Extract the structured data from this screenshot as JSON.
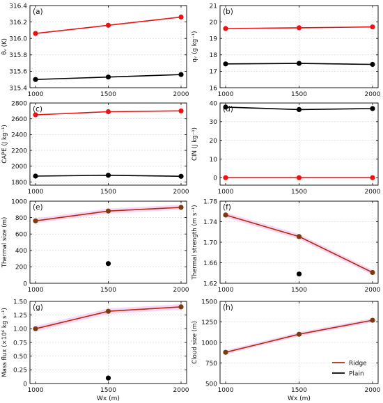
{
  "figure": {
    "x_axis_label": "Wx (m)",
    "legend": [
      {
        "label": "Ridge",
        "color": "#b02a0f"
      },
      {
        "label": "Plain",
        "color": "#000000"
      }
    ]
  },
  "colors": {
    "red": "#ee1111",
    "black": "#000000",
    "ridge_line": "#b02a0f",
    "ridge_marker": "#7a3b12",
    "shading": "#f7c4f0"
  },
  "chart_data": [
    {
      "type": "line",
      "panel_label": "(a)",
      "ylabel": "θᵥ (K)",
      "x": [
        1000,
        1500,
        2000
      ],
      "xlim": [
        1000,
        2000
      ],
      "ylim": [
        315.4,
        316.4
      ],
      "yticks": [
        315.4,
        315.6,
        315.8,
        316.0,
        316.2,
        316.4
      ],
      "ytick_decimals": 1,
      "grid": true,
      "series": [
        {
          "values": [
            316.06,
            316.16,
            316.26
          ],
          "color": "red"
        },
        {
          "values": [
            315.5,
            315.53,
            315.56
          ],
          "color": "black"
        }
      ]
    },
    {
      "type": "line",
      "panel_label": "(b)",
      "ylabel": "qᵥ (g kg⁻¹)",
      "x": [
        1000,
        1500,
        2000
      ],
      "xlim": [
        1000,
        2000
      ],
      "ylim": [
        16,
        21
      ],
      "yticks": [
        16,
        17,
        18,
        19,
        20,
        21
      ],
      "ytick_decimals": 0,
      "grid": true,
      "series": [
        {
          "values": [
            19.6,
            19.65,
            19.7
          ],
          "color": "red"
        },
        {
          "values": [
            17.45,
            17.48,
            17.42
          ],
          "color": "black"
        }
      ]
    },
    {
      "type": "line",
      "panel_label": "(c)",
      "ylabel": "CAPE (J kg⁻¹)",
      "x": [
        1000,
        1500,
        2000
      ],
      "xlim": [
        1000,
        2000
      ],
      "ylim": [
        1760,
        2800
      ],
      "yticks": [
        1800,
        2000,
        2200,
        2400,
        2600,
        2800
      ],
      "ytick_decimals": 0,
      "grid": true,
      "series": [
        {
          "values": [
            2650,
            2690,
            2700
          ],
          "color": "red"
        },
        {
          "values": [
            1875,
            1885,
            1872
          ],
          "color": "black"
        }
      ]
    },
    {
      "type": "line",
      "panel_label": "(d)",
      "ylabel": "CIN (J kg⁻¹)",
      "x": [
        1000,
        1500,
        2000
      ],
      "xlim": [
        1000,
        2000
      ],
      "ylim": [
        -4,
        40
      ],
      "yticks": [
        0,
        10,
        20,
        30,
        40
      ],
      "ytick_decimals": 0,
      "grid": true,
      "series": [
        {
          "values": [
            37.8,
            36.5,
            37.0
          ],
          "color": "black"
        },
        {
          "values": [
            0,
            0,
            0
          ],
          "color": "red"
        }
      ]
    },
    {
      "type": "line",
      "panel_label": "(e)",
      "ylabel": "Thermal size (m)",
      "x": [
        1000,
        1500,
        2000
      ],
      "xlim": [
        1000,
        2000
      ],
      "ylim": [
        0,
        1000
      ],
      "yticks": [
        0,
        200,
        400,
        600,
        800,
        1000
      ],
      "ytick_decimals": 0,
      "grid": true,
      "series": [
        {
          "values": [
            760,
            880,
            925
          ],
          "color": "ridge",
          "shade": 30
        },
        {
          "values": [
            null,
            240,
            null
          ],
          "color": "black",
          "points_only": true
        }
      ]
    },
    {
      "type": "line",
      "panel_label": "(f)",
      "ylabel": "Thermal strength (m s⁻¹)",
      "x": [
        1000,
        1500,
        2000
      ],
      "xlim": [
        1000,
        2000
      ],
      "ylim": [
        1.62,
        1.78
      ],
      "yticks": [
        1.62,
        1.66,
        1.7,
        1.74,
        1.78
      ],
      "ytick_decimals": 2,
      "grid": true,
      "series": [
        {
          "values": [
            1.753,
            1.711,
            1.641
          ],
          "color": "ridge",
          "shade": 0.005
        },
        {
          "values": [
            null,
            1.638,
            null
          ],
          "color": "black",
          "points_only": true
        }
      ]
    },
    {
      "type": "line",
      "panel_label": "(g)",
      "ylabel": "Mass flux (×10⁶ kg s⁻¹)",
      "x": [
        1000,
        1500,
        2000
      ],
      "xlim": [
        1000,
        2000
      ],
      "ylim": [
        0,
        1.5
      ],
      "yticks": [
        0,
        0.25,
        0.5,
        0.75,
        1.0,
        1.25,
        1.5
      ],
      "ytick_decimals": 2,
      "first_tick_plain": true,
      "grid": true,
      "series": [
        {
          "values": [
            1.0,
            1.32,
            1.4
          ],
          "color": "ridge",
          "shade": 0.05
        },
        {
          "values": [
            null,
            0.1,
            null
          ],
          "color": "black",
          "points_only": true
        }
      ]
    },
    {
      "type": "line",
      "panel_label": "(h)",
      "ylabel": "Cloud size (m)",
      "x": [
        1000,
        1500,
        2000
      ],
      "xlim": [
        1000,
        2000
      ],
      "ylim": [
        500,
        1500
      ],
      "yticks": [
        500,
        750,
        1000,
        1250,
        1500
      ],
      "ytick_decimals": 0,
      "grid": true,
      "show_legend": true,
      "legend_position": "lower-right",
      "series": [
        {
          "values": [
            880,
            1100,
            1270
          ],
          "color": "ridge",
          "shade": 25
        }
      ]
    }
  ]
}
